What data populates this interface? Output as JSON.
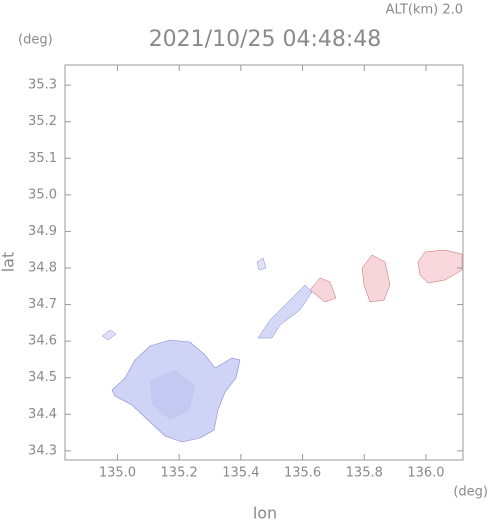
{
  "chart_data": {
    "type": "map",
    "title": "2021/10/25 04:48:48",
    "subtitle": "ALT(km) 2.0",
    "y_unit": "(deg)",
    "x_unit": "(deg)",
    "xlabel": "lon",
    "ylabel": "lat",
    "xlim": [
      134.83,
      136.12
    ],
    "ylim": [
      34.275,
      35.355
    ],
    "xticks": [
      {
        "value": 135,
        "label": "135.0"
      },
      135.2,
      135.4,
      135.6,
      135.8,
      {
        "value": 136,
        "label": "136.0"
      }
    ],
    "yticks": [
      34.3,
      34.4,
      34.5,
      34.6,
      34.7,
      34.8,
      34.9,
      {
        "value": 35,
        "label": "35.0"
      },
      35.1,
      35.2,
      35.3
    ]
  }
}
